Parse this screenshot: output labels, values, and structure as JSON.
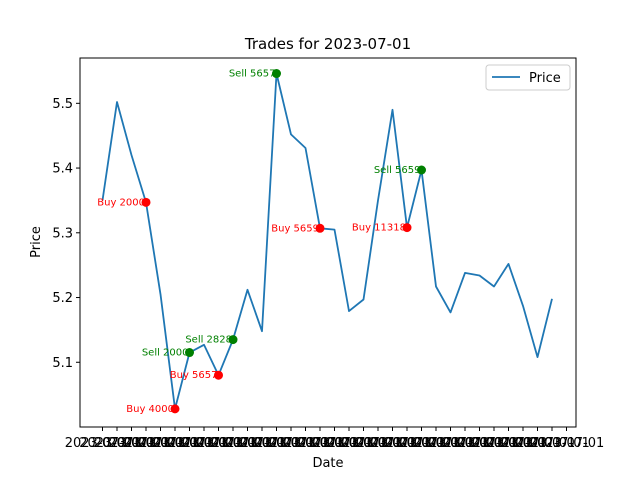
{
  "chart_data": {
    "type": "line",
    "title": "Trades for 2023-07-01",
    "xlabel": "Date",
    "ylabel": "Price",
    "x_tick_label": "2023-07-01",
    "x_tick_labels": [
      "2023-07-01",
      "2023-07-01",
      "2023-07-01",
      "2023-07-01",
      "2023-07-01",
      "2023-07-01",
      "2023-07-01",
      "2023-07-01",
      "2023-07-01",
      "2023-07-01",
      "2023-07-01",
      "2023-07-01",
      "2023-07-01",
      "2023-07-01",
      "2023-07-01",
      "2023-07-01",
      "2023-07-01",
      "2023-07-01",
      "2023-07-01",
      "2023-07-01",
      "2023-07-01",
      "2023-07-01",
      "2023-07-01",
      "2023-07-01",
      "2023-07-01",
      "2023-07-01",
      "2023-07-01",
      "2023-07-01",
      "2023-07-01",
      "2023-07-01",
      "2023-07-01",
      "2023-07-01",
      "2023-07-01"
    ],
    "ylim": [
      5.0,
      5.57
    ],
    "y_ticks": [
      "5.1",
      "5.2",
      "5.3",
      "5.4",
      "5.5"
    ],
    "grid": false,
    "legend_position": "top-right",
    "series": [
      {
        "name": "Price",
        "color": "#1f77b4",
        "values": [
          5.35,
          5.502,
          5.42,
          5.347,
          5.205,
          5.028,
          5.115,
          5.127,
          5.08,
          5.135,
          5.212,
          5.148,
          5.546,
          5.452,
          5.431,
          5.307,
          5.305,
          5.179,
          5.197,
          5.35,
          5.49,
          5.308,
          5.397,
          5.217,
          5.177,
          5.238,
          5.234,
          5.217,
          5.252,
          5.187,
          5.108,
          5.198
        ]
      }
    ],
    "trades": [
      {
        "index": 3,
        "price": 5.347,
        "side": "buy",
        "label": "Buy 2000"
      },
      {
        "index": 5,
        "price": 5.028,
        "side": "buy",
        "label": "Buy 4000"
      },
      {
        "index": 6,
        "price": 5.115,
        "side": "sell",
        "label": "Sell 2000"
      },
      {
        "index": 8,
        "price": 5.08,
        "side": "buy",
        "label": "Buy 5657"
      },
      {
        "index": 9,
        "price": 5.135,
        "side": "sell",
        "label": "Sell 2828"
      },
      {
        "index": 12,
        "price": 5.546,
        "side": "sell",
        "label": "Sell 5657"
      },
      {
        "index": 15,
        "price": 5.307,
        "side": "buy",
        "label": "Buy 5659"
      },
      {
        "index": 21,
        "price": 5.308,
        "side": "buy",
        "label": "Buy 11318"
      },
      {
        "index": 22,
        "price": 5.397,
        "side": "sell",
        "label": "Sell 5659"
      }
    ],
    "colors": {
      "buy": "#ff0000",
      "sell": "#008000",
      "line": "#1f77b4"
    }
  }
}
